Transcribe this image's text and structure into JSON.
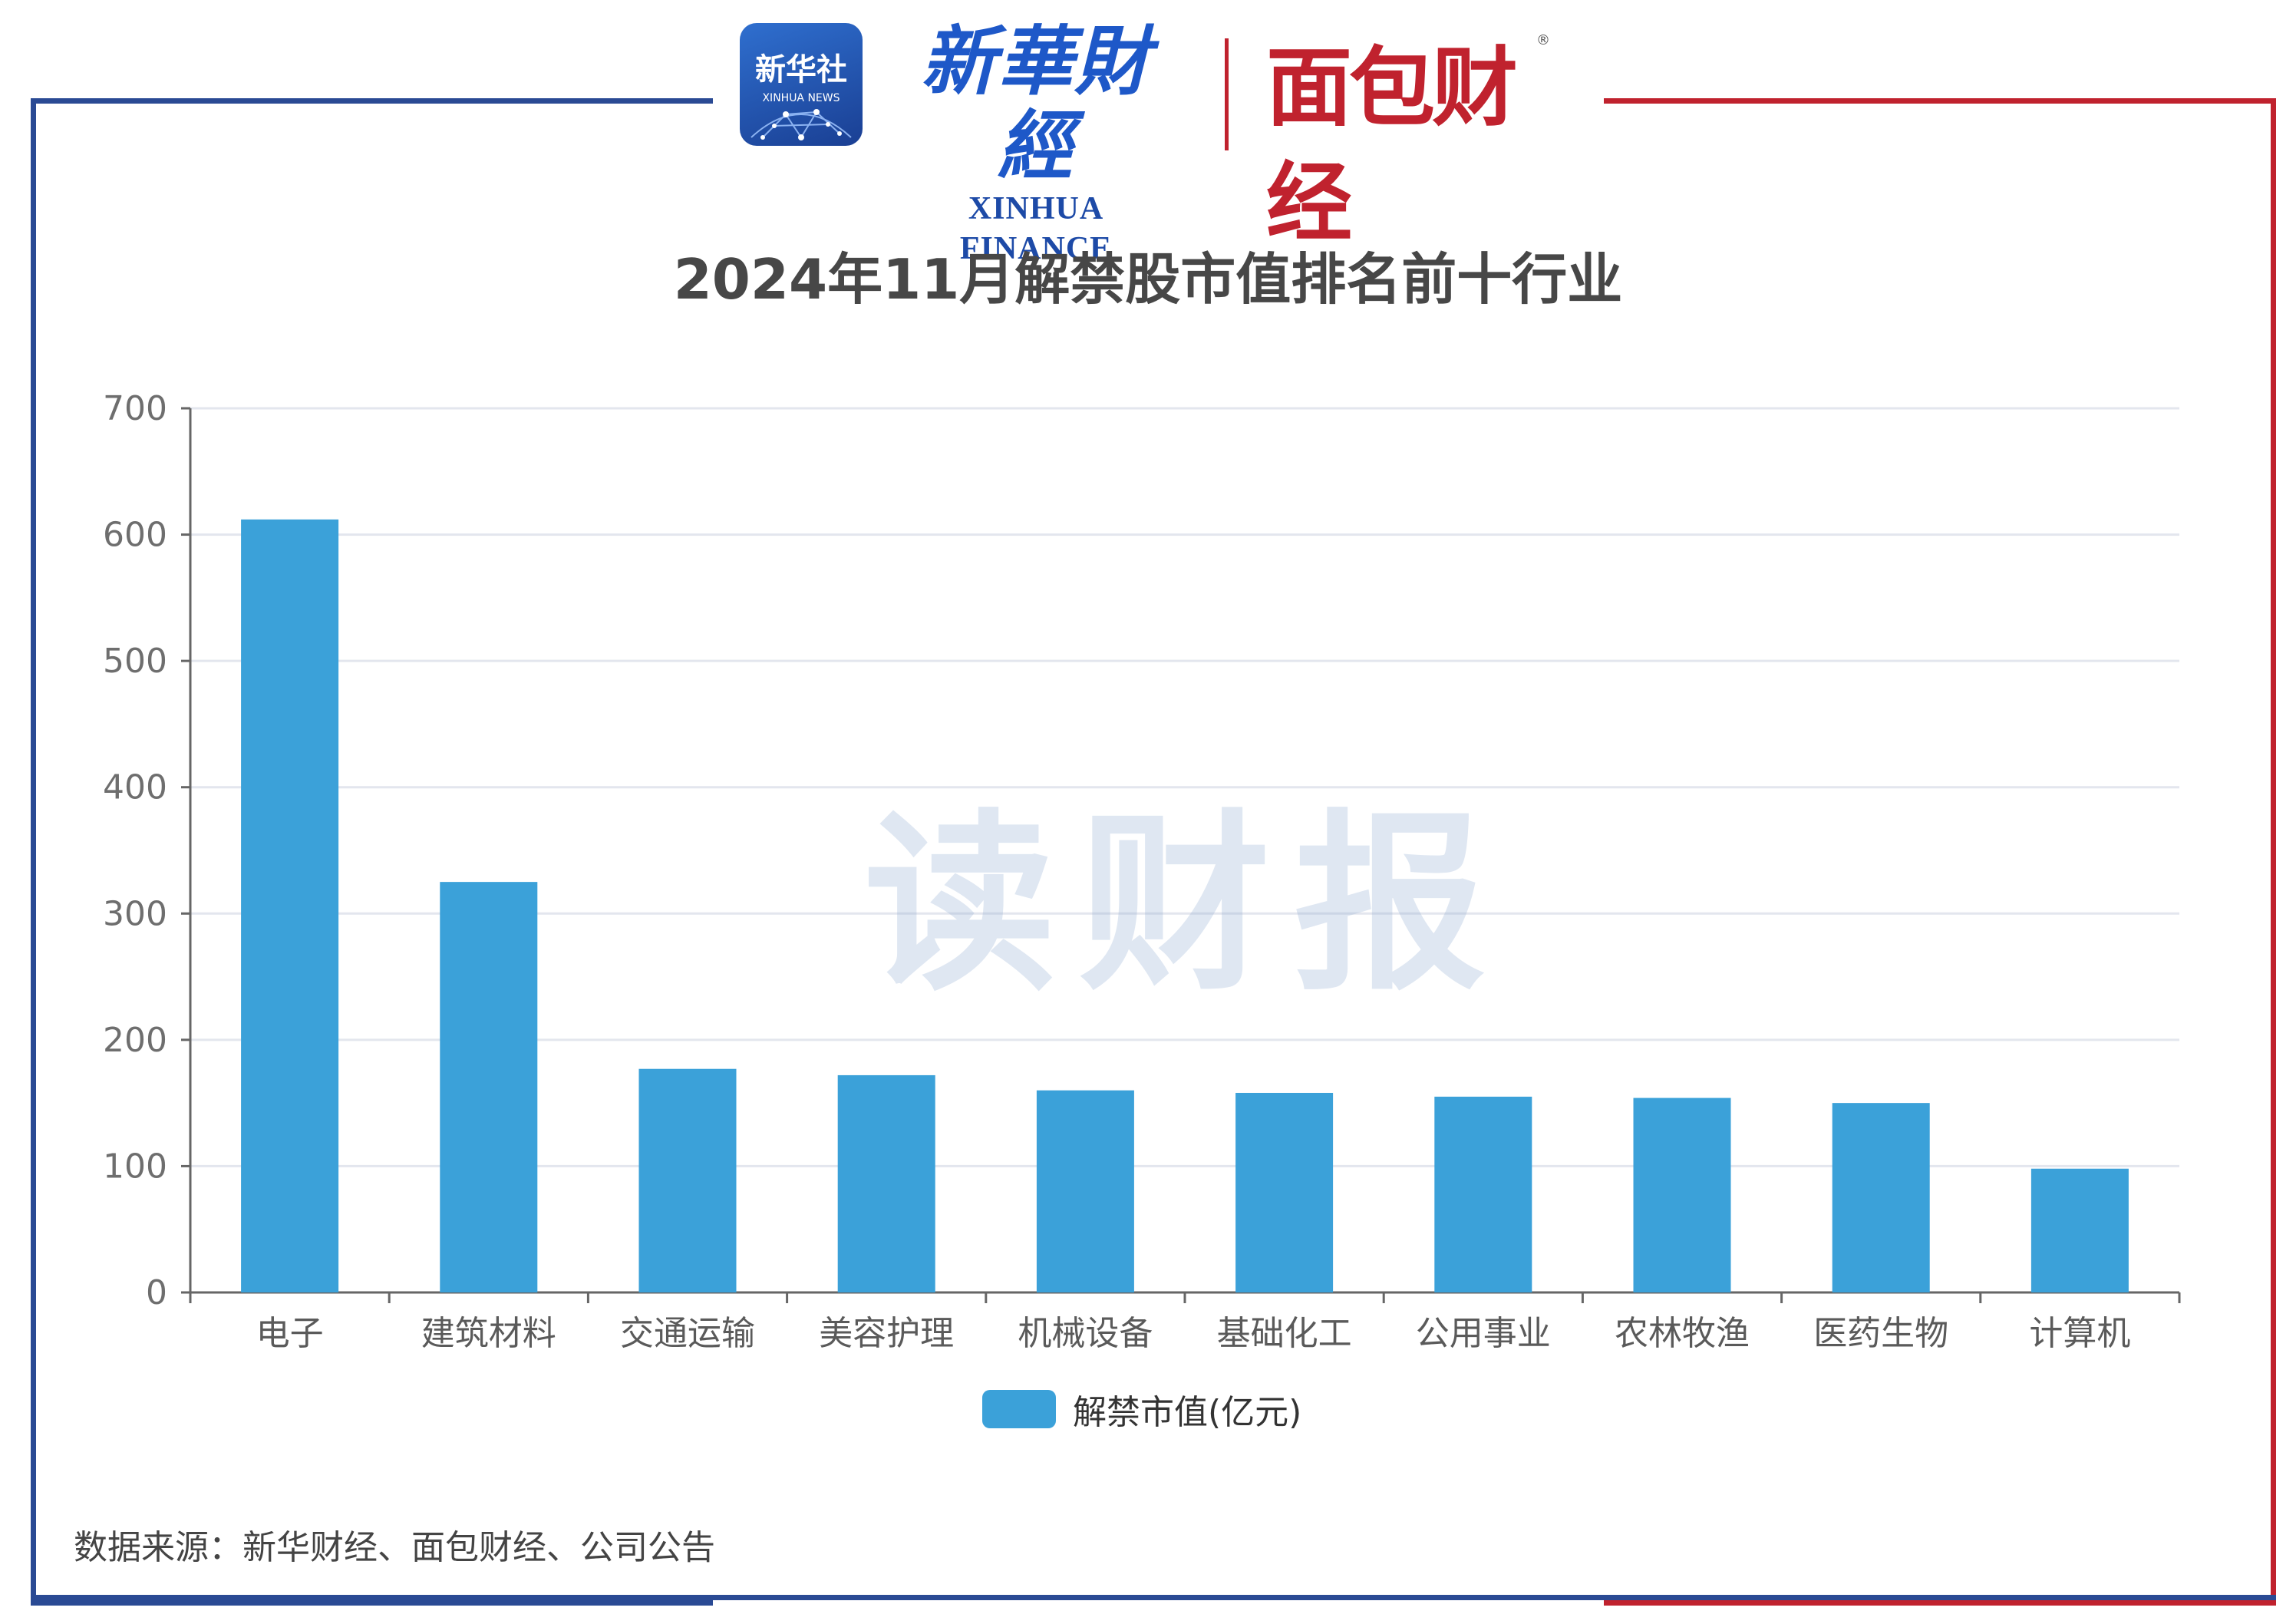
{
  "branding": {
    "xinhua_news_badge_cn": "新华社",
    "xinhua_news_badge_en": "XINHUA NEWS",
    "xinhua_finance_cn": "新華財經",
    "xinhua_finance_en": "XINHUA FINANCE",
    "mianbao_finance": "面包财经",
    "registered_mark": "®",
    "watermark": "读财报"
  },
  "footer": {
    "source": "数据来源：新华财经、面包财经、公司公告"
  },
  "colors": {
    "bar": "#3ba1d9",
    "frame_left": "#2a4a94",
    "frame_right": "#c0222e"
  },
  "chart_data": {
    "type": "bar",
    "title": "2024年11月解禁股市值排名前十行业",
    "categories": [
      "电子",
      "建筑材料",
      "交通运输",
      "美容护理",
      "机械设备",
      "基础化工",
      "公用事业",
      "农林牧渔",
      "医药生物",
      "计算机"
    ],
    "series": [
      {
        "name": "解禁市值(亿元)",
        "values": [
          612,
          325,
          177,
          172,
          160,
          158,
          155,
          154,
          150,
          98
        ]
      }
    ],
    "ylim": [
      0,
      700
    ],
    "yticks": [
      0,
      100,
      200,
      300,
      400,
      500,
      600,
      700
    ],
    "grid": true,
    "legend_position": "bottom"
  }
}
